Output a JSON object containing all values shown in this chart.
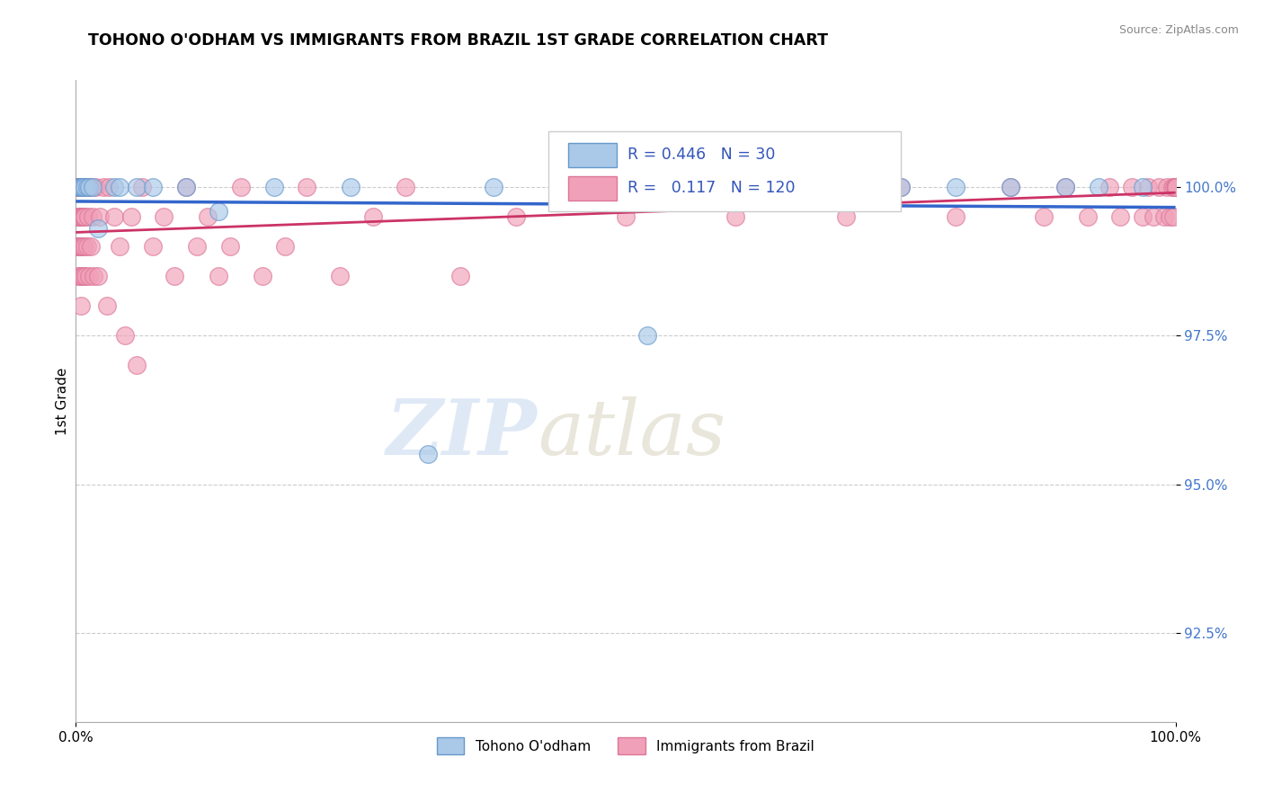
{
  "title": "TOHONO O'ODHAM VS IMMIGRANTS FROM BRAZIL 1ST GRADE CORRELATION CHART",
  "source_text": "Source: ZipAtlas.com",
  "ylabel": "1st Grade",
  "xlabel": "",
  "xlim": [
    0.0,
    100.0
  ],
  "ylim": [
    91.0,
    101.8
  ],
  "yticks": [
    92.5,
    95.0,
    97.5,
    100.0
  ],
  "xticks": [
    0.0,
    100.0
  ],
  "xticklabels": [
    "0.0%",
    "100.0%"
  ],
  "yticklabels": [
    "92.5%",
    "95.0%",
    "97.5%",
    "100.0%"
  ],
  "blue_color": "#aac8e8",
  "blue_edge": "#6699cc",
  "pink_color": "#f0a0b8",
  "pink_edge": "#dd7799",
  "trend_blue": "#3366cc",
  "trend_pink": "#cc3366",
  "R_blue": 0.446,
  "N_blue": 30,
  "R_pink": 0.117,
  "N_pink": 120,
  "legend_label_blue": "Tohono O'odham",
  "legend_label_pink": "Immigrants from Brazil",
  "watermark_zip": "ZIP",
  "watermark_atlas": "atlas",
  "title_fontsize": 12.5,
  "blue_x": [
    0.3,
    0.4,
    0.5,
    0.5,
    0.6,
    0.8,
    1.0,
    1.2,
    1.5,
    2.0,
    3.5,
    4.0,
    5.5,
    7.0,
    10.0,
    13.0,
    18.0,
    25.0,
    32.0,
    38.0,
    45.0,
    52.0,
    60.0,
    68.0,
    75.0,
    80.0,
    85.0,
    90.0,
    93.0,
    97.0
  ],
  "blue_y": [
    100.0,
    100.0,
    100.0,
    100.0,
    100.0,
    100.0,
    100.0,
    100.0,
    100.0,
    99.3,
    100.0,
    100.0,
    100.0,
    100.0,
    100.0,
    99.6,
    100.0,
    100.0,
    95.5,
    100.0,
    100.0,
    97.5,
    100.0,
    100.0,
    100.0,
    100.0,
    100.0,
    100.0,
    100.0,
    100.0
  ],
  "pink_x": [
    0.1,
    0.1,
    0.15,
    0.15,
    0.2,
    0.2,
    0.2,
    0.2,
    0.25,
    0.25,
    0.3,
    0.3,
    0.3,
    0.35,
    0.35,
    0.4,
    0.4,
    0.45,
    0.45,
    0.5,
    0.5,
    0.5,
    0.55,
    0.55,
    0.6,
    0.6,
    0.65,
    0.7,
    0.7,
    0.75,
    0.8,
    0.8,
    0.9,
    0.9,
    1.0,
    1.0,
    1.1,
    1.2,
    1.3,
    1.4,
    1.5,
    1.6,
    1.8,
    2.0,
    2.2,
    2.5,
    2.8,
    3.0,
    3.5,
    4.0,
    4.5,
    5.0,
    5.5,
    6.0,
    7.0,
    8.0,
    9.0,
    10.0,
    11.0,
    12.0,
    13.0,
    14.0,
    15.0,
    17.0,
    19.0,
    21.0,
    24.0,
    27.0,
    30.0,
    35.0,
    40.0,
    45.0,
    50.0,
    55.0,
    60.0,
    65.0,
    70.0,
    75.0,
    80.0,
    85.0,
    88.0,
    90.0,
    92.0,
    94.0,
    95.0,
    96.0,
    97.0,
    97.5,
    98.0,
    98.5,
    99.0,
    99.2,
    99.5,
    99.7,
    99.8,
    99.9,
    100.0,
    100.0,
    100.0,
    100.0,
    100.0,
    100.0,
    100.0,
    100.0,
    100.0,
    100.0,
    100.0,
    100.0,
    100.0,
    100.0,
    100.0,
    100.0,
    100.0,
    100.0,
    100.0,
    100.0,
    100.0,
    100.0,
    100.0,
    100.0
  ],
  "pink_y": [
    100.0,
    99.5,
    100.0,
    99.0,
    100.0,
    99.5,
    99.0,
    98.5,
    100.0,
    99.0,
    100.0,
    99.5,
    99.0,
    100.0,
    98.5,
    100.0,
    99.0,
    99.5,
    98.0,
    100.0,
    99.5,
    99.0,
    100.0,
    98.5,
    99.5,
    99.0,
    100.0,
    99.5,
    98.5,
    100.0,
    99.5,
    99.0,
    100.0,
    98.5,
    100.0,
    99.0,
    99.5,
    98.5,
    100.0,
    99.0,
    99.5,
    98.5,
    100.0,
    98.5,
    99.5,
    100.0,
    98.0,
    100.0,
    99.5,
    99.0,
    97.5,
    99.5,
    97.0,
    100.0,
    99.0,
    99.5,
    98.5,
    100.0,
    99.0,
    99.5,
    98.5,
    99.0,
    100.0,
    98.5,
    99.0,
    100.0,
    98.5,
    99.5,
    100.0,
    98.5,
    99.5,
    100.0,
    99.5,
    100.0,
    99.5,
    100.0,
    99.5,
    100.0,
    99.5,
    100.0,
    99.5,
    100.0,
    99.5,
    100.0,
    99.5,
    100.0,
    99.5,
    100.0,
    99.5,
    100.0,
    99.5,
    100.0,
    99.5,
    100.0,
    99.5,
    100.0,
    100.0,
    100.0,
    100.0,
    100.0,
    100.0,
    100.0,
    100.0,
    100.0,
    100.0,
    100.0,
    100.0,
    100.0,
    100.0,
    100.0,
    100.0,
    100.0,
    100.0,
    100.0,
    100.0,
    100.0,
    100.0,
    100.0,
    100.0,
    100.0
  ]
}
